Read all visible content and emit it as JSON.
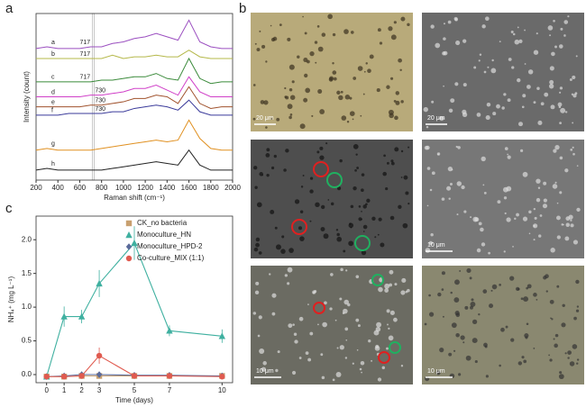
{
  "panels": [
    "a",
    "b",
    "c"
  ],
  "chart_data": [
    {
      "type": "line",
      "x_label": "Raman shift (cm⁻¹)",
      "y_label": "Intensity (count)",
      "x": [
        200,
        300,
        400,
        500,
        600,
        700,
        800,
        900,
        1000,
        1100,
        1200,
        1300,
        1400,
        1500,
        1600,
        1700,
        1800,
        1900,
        2000
      ],
      "xlim": [
        200,
        2000
      ],
      "xticks": [
        200,
        400,
        600,
        800,
        1000,
        1200,
        1400,
        1600,
        1800,
        2000
      ],
      "ylim": [
        0,
        10
      ],
      "series": [
        {
          "name": "a",
          "color": "#9b4fc0",
          "values": [
            7.9,
            8.0,
            7.9,
            7.9,
            7.9,
            8.0,
            8.0,
            8.2,
            8.3,
            8.5,
            8.6,
            8.8,
            8.6,
            8.4,
            9.6,
            8.3,
            8.0,
            7.9,
            7.9
          ]
        },
        {
          "name": "b",
          "color": "#b5b84a",
          "values": [
            7.3,
            7.3,
            7.3,
            7.3,
            7.3,
            7.3,
            7.3,
            7.5,
            7.3,
            7.4,
            7.4,
            7.5,
            7.4,
            7.4,
            7.8,
            7.4,
            7.3,
            7.3,
            7.3
          ]
        },
        {
          "name": "c",
          "color": "#3a8a3a",
          "values": [
            5.9,
            5.9,
            5.9,
            5.9,
            5.9,
            5.9,
            6.0,
            6.0,
            6.1,
            6.2,
            6.2,
            6.4,
            6.1,
            6.0,
            7.3,
            6.1,
            5.8,
            5.9,
            5.9
          ]
        },
        {
          "name": "d",
          "color": "#d040c8",
          "values": [
            5.0,
            5.0,
            5.0,
            5.0,
            5.0,
            5.1,
            5.1,
            5.2,
            5.3,
            5.5,
            5.5,
            5.7,
            5.4,
            5.1,
            6.2,
            5.3,
            5.0,
            5.0,
            5.0
          ]
        },
        {
          "name": "e",
          "color": "#a0522d",
          "values": [
            4.4,
            4.4,
            4.4,
            4.4,
            4.4,
            4.5,
            4.5,
            4.6,
            4.7,
            4.9,
            4.9,
            5.1,
            5.0,
            4.6,
            5.6,
            4.6,
            4.3,
            4.4,
            4.4
          ]
        },
        {
          "name": "f",
          "color": "#3a3a9a",
          "values": [
            3.9,
            3.9,
            3.9,
            4.0,
            4.0,
            4.0,
            4.0,
            4.1,
            4.1,
            4.3,
            4.4,
            4.5,
            4.4,
            4.2,
            4.8,
            4.1,
            3.9,
            3.9,
            3.9
          ]
        },
        {
          "name": "g",
          "color": "#e09020",
          "values": [
            1.8,
            1.9,
            1.8,
            1.8,
            1.8,
            1.8,
            1.9,
            2.0,
            2.1,
            2.2,
            2.3,
            2.4,
            2.3,
            2.4,
            3.6,
            2.5,
            1.9,
            1.8,
            1.8
          ]
        },
        {
          "name": "h",
          "color": "#222222",
          "values": [
            0.6,
            0.7,
            0.6,
            0.6,
            0.6,
            0.6,
            0.6,
            0.7,
            0.8,
            0.9,
            1.0,
            1.1,
            1.0,
            0.9,
            1.8,
            0.9,
            0.6,
            0.6,
            0.6
          ]
        }
      ],
      "annotations": [
        "717",
        "717",
        "717",
        "730",
        "730",
        "730"
      ]
    },
    {
      "type": "line",
      "x_label": "Time (days)",
      "y_label": "NH₄⁺ (mg L⁻¹)",
      "x": [
        0,
        1,
        2,
        3,
        5,
        7,
        10
      ],
      "xlim": [
        -0.6,
        10.6
      ],
      "xticks": [
        0,
        1,
        2,
        3,
        5,
        7,
        10
      ],
      "ylim": [
        -0.12,
        2.35
      ],
      "yticks": [
        {
          "value": 0,
          "label": "0.0"
        },
        0.5,
        {
          "value": 1,
          "label": "1.0"
        },
        1.5,
        {
          "value": 2,
          "label": "2.0"
        }
      ],
      "legend": "upper right",
      "series": [
        {
          "name": "CK_no bacteria",
          "color": "#c8a070",
          "marker": "square",
          "values": [
            -0.03,
            -0.03,
            -0.02,
            -0.02,
            -0.02,
            -0.02,
            -0.02
          ],
          "errors": [
            0.01,
            0.01,
            0.01,
            0.01,
            0.01,
            0.01,
            0.01
          ]
        },
        {
          "name": "Monoculture_HN",
          "color": "#3fb0a0",
          "marker": "triangle",
          "values": [
            -0.03,
            0.86,
            0.86,
            1.35,
            1.95,
            0.65,
            0.57
          ],
          "errors": [
            0.02,
            0.15,
            0.1,
            0.2,
            0.25,
            0.08,
            0.1
          ]
        },
        {
          "name": "Monoculture_HPD-2",
          "color": "#5a6a9a",
          "marker": "diamond",
          "values": [
            -0.03,
            -0.02,
            0.0,
            0.0,
            -0.01,
            -0.01,
            -0.02
          ],
          "errors": [
            0.01,
            0.01,
            0.01,
            0.01,
            0.01,
            0.01,
            0.01
          ]
        },
        {
          "name": "Co-culture_MIX (1:1)",
          "color": "#e05a4f",
          "marker": "circle",
          "values": [
            -0.03,
            -0.03,
            -0.02,
            0.28,
            -0.02,
            -0.02,
            -0.03
          ],
          "errors": [
            0.01,
            0.01,
            0.02,
            0.12,
            0.01,
            0.01,
            0.02
          ]
        }
      ]
    }
  ],
  "panel_b": {
    "scale_bars": [
      "20 μm",
      "20 μm",
      "10 μm",
      "10 μm",
      "10 μm"
    ]
  }
}
